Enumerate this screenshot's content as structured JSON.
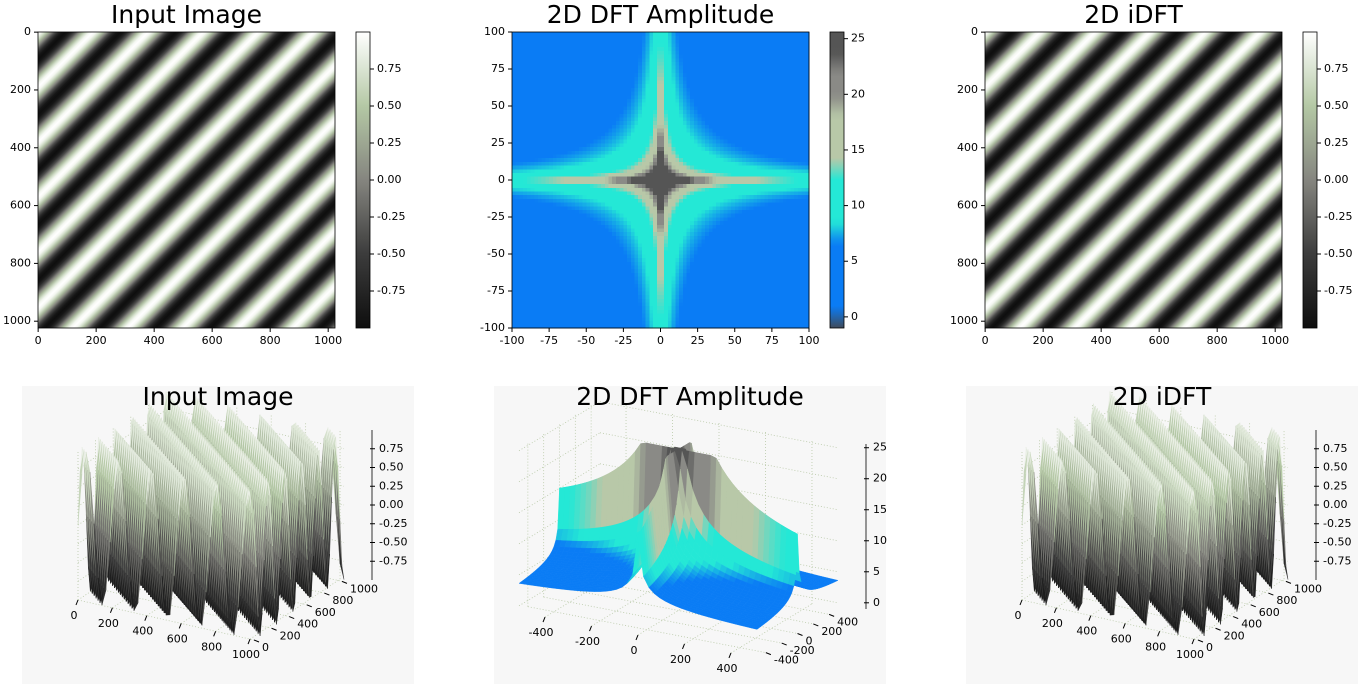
{
  "chart_data": [
    {
      "type": "image",
      "title": "Input Image",
      "xlim": [
        -0.5,
        1023.5
      ],
      "ylim": [
        1023.5,
        -0.5
      ],
      "xticks": [
        0,
        200,
        400,
        600,
        800,
        1000
      ],
      "yticks": [
        0,
        200,
        400,
        600,
        800,
        1000
      ],
      "colorbar": {
        "lim": [
          -1,
          1
        ],
        "ticks": [
          -0.75,
          {
            "value": -0.5,
            "label": "-0.50"
          },
          -0.25,
          {
            "value": 0,
            "label": "0.00"
          },
          0.25,
          {
            "value": 0.5,
            "label": "0.50"
          },
          0.75
        ]
      },
      "colormap": [
        "#0e0e0e",
        "#3c3c3c",
        "#85857f",
        "#b4c8a5",
        "#ffffff"
      ]
    },
    {
      "type": "heatmap",
      "title": "2D DFT Amplitude",
      "xlim": [
        -100,
        100
      ],
      "ylim": [
        -100,
        100
      ],
      "xticks": [
        -100,
        -75,
        -50,
        -25,
        0,
        25,
        50,
        75,
        100
      ],
      "yticks": [
        -100,
        -75,
        -50,
        -25,
        0,
        25,
        50,
        75,
        100
      ],
      "colorbar": {
        "lim": [
          -1,
          25.6
        ],
        "ticks": [
          0,
          5,
          10,
          15,
          20,
          25
        ]
      },
      "colormap": [
        "#404a5a",
        "#0a7cf5",
        "#0a7cf5",
        "#0a7cf5",
        "#0a7cf5",
        "#24e8d6",
        "#24e8d6",
        "#24e8d6",
        "#b8c8a8",
        "#b8c8a8",
        "#b8c8a8",
        "#8a8a86",
        "#8a8a86",
        "#555555",
        "#555555"
      ]
    },
    {
      "type": "image",
      "title": "2D iDFT",
      "xlim": [
        -0.5,
        1023.5
      ],
      "ylim": [
        1023.5,
        -0.5
      ],
      "xticks": [
        0,
        200,
        400,
        600,
        800,
        1000
      ],
      "yticks": [
        0,
        200,
        400,
        600,
        800,
        1000
      ],
      "colorbar": {
        "lim": [
          -1,
          1
        ],
        "ticks": [
          -0.75,
          {
            "value": -0.5,
            "label": "-0.50"
          },
          -0.25,
          {
            "value": 0,
            "label": "0.00"
          },
          0.25,
          {
            "value": 0.5,
            "label": "0.50"
          },
          0.75
        ]
      },
      "colormap": [
        "#0e0e0e",
        "#3c3c3c",
        "#85857f",
        "#b4c8a5",
        "#ffffff"
      ]
    },
    {
      "type": "surface3d",
      "title": "Input Image",
      "xlim": [
        0,
        1023
      ],
      "ylim": [
        0,
        1023
      ],
      "zlim": [
        -1,
        1
      ],
      "xticks": [
        0,
        200,
        400,
        600,
        800,
        1000
      ],
      "yticks": [
        0,
        200,
        400,
        600,
        800,
        1000
      ],
      "zticks": [
        -0.75,
        {
          "value": -0.5,
          "label": "-0.50"
        },
        -0.25,
        {
          "value": 0,
          "label": "0.00"
        },
        0.25,
        {
          "value": 0.5,
          "label": "0.50"
        },
        0.75
      ],
      "colormap": [
        "#0e0e0e",
        "#3c3c3c",
        "#85857f",
        "#b4c8a5",
        "#ffffff"
      ]
    },
    {
      "type": "surface3d-dft",
      "title": "2D DFT Amplitude",
      "xlim": [
        -512,
        512
      ],
      "ylim": [
        -512,
        512
      ],
      "zlim": [
        -1,
        25.6
      ],
      "xticks": [
        -400,
        -200,
        0,
        200,
        400
      ],
      "yticks": [
        -400,
        -200,
        0,
        200,
        400
      ],
      "zticks": [
        0,
        5,
        10,
        15,
        20,
        25
      ],
      "colormap": [
        "#404a5a",
        "#0a7cf5",
        "#0a7cf5",
        "#0a7cf5",
        "#0a7cf5",
        "#24e8d6",
        "#24e8d6",
        "#24e8d6",
        "#b8c8a8",
        "#b8c8a8",
        "#b8c8a8",
        "#8a8a86",
        "#8a8a86",
        "#555555",
        "#555555"
      ]
    },
    {
      "type": "surface3d",
      "title": "2D iDFT",
      "xlim": [
        0,
        1023
      ],
      "ylim": [
        0,
        1023
      ],
      "zlim": [
        -1,
        1
      ],
      "xticks": [
        0,
        200,
        400,
        600,
        800,
        1000
      ],
      "yticks": [
        0,
        200,
        400,
        600,
        800,
        1000
      ],
      "zticks": [
        -0.75,
        {
          "value": -0.5,
          "label": "-0.50"
        },
        -0.25,
        {
          "value": 0,
          "label": "0.00"
        },
        0.25,
        {
          "value": 0.5,
          "label": "0.50"
        },
        0.75
      ],
      "colormap": [
        "#0e0e0e",
        "#3c3c3c",
        "#85857f",
        "#b4c8a5",
        "#ffffff"
      ]
    }
  ]
}
